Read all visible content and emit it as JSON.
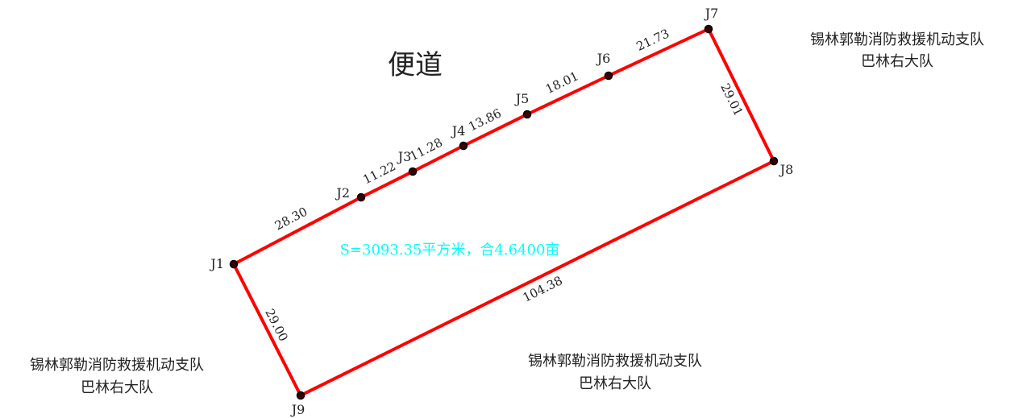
{
  "road_label": "便道",
  "area_label": "S=3093.35平方米，合4.6400亩",
  "colors": {
    "boundary": "#ff0000",
    "area_text": "#00ffff",
    "text": "#222222",
    "point": "#000000"
  },
  "points": [
    {
      "id": "J1",
      "label": "J1"
    },
    {
      "id": "J2",
      "label": "J2"
    },
    {
      "id": "J3",
      "label": "J3"
    },
    {
      "id": "J4",
      "label": "J4"
    },
    {
      "id": "J5",
      "label": "J5"
    },
    {
      "id": "J6",
      "label": "J6"
    },
    {
      "id": "J7",
      "label": "J7"
    },
    {
      "id": "J8",
      "label": "J8"
    },
    {
      "id": "J9",
      "label": "J9"
    }
  ],
  "edges": [
    {
      "from": "J1",
      "to": "J2",
      "length": "28.30"
    },
    {
      "from": "J2",
      "to": "J3",
      "length": "11.22"
    },
    {
      "from": "J3",
      "to": "J4",
      "length": "11.28"
    },
    {
      "from": "J4",
      "to": "J5",
      "length": "13.86"
    },
    {
      "from": "J5",
      "to": "J6",
      "length": "18.01"
    },
    {
      "from": "J6",
      "to": "J7",
      "length": "21.73"
    },
    {
      "from": "J7",
      "to": "J8",
      "length": "29.01"
    },
    {
      "from": "J8",
      "to": "J9",
      "length": "104.38"
    },
    {
      "from": "J9",
      "to": "J1",
      "length": "29.00"
    }
  ],
  "neighbors": [
    {
      "line1": "锡林郭勒消防救援机动支队",
      "line2": "巴林右大队"
    },
    {
      "line1": "锡林郭勒消防救援机动支队",
      "line2": "巴林右大队"
    },
    {
      "line1": "锡林郭勒消防救援机动支队",
      "line2": "巴林右大队"
    }
  ]
}
